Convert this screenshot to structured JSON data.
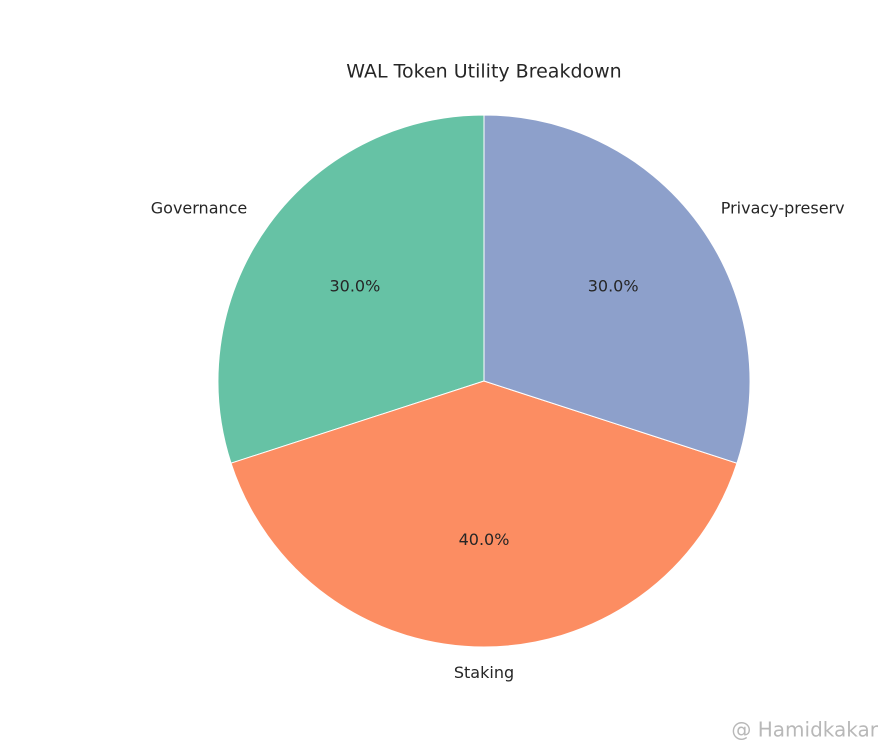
{
  "chart_data": {
    "type": "pie",
    "title": "WAL Token Utility Breakdown",
    "categories": [
      "Governance",
      "Staking",
      "Privacy-preserv"
    ],
    "values": [
      30,
      40,
      30
    ],
    "value_labels": [
      "30.0%",
      "40.0%",
      "30.0%"
    ],
    "colors": [
      "#66c2a5",
      "#fc8d62",
      "#8da0cb"
    ],
    "watermark": "@ Hamidkakar"
  }
}
